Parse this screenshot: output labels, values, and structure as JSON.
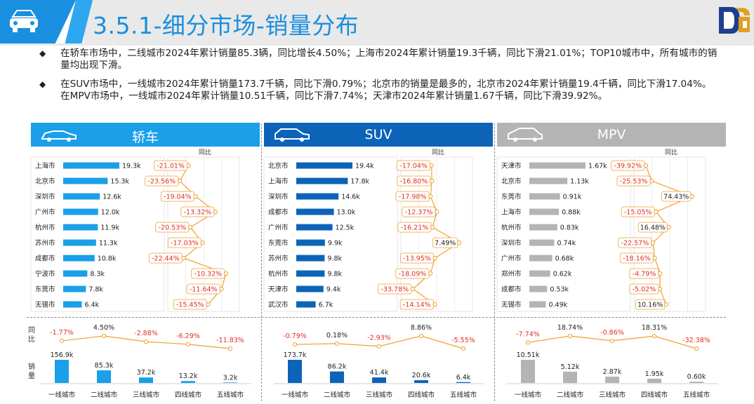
{
  "header": {
    "title": "3.5.1-细分市场-销量分布"
  },
  "bullets": [
    "在轿车市场中，二线城市2024年累计销量85.3辆，同比增长4.50%；上海市2024年累计销量19.3千辆，同比下滑21.01%；TOP10城市中，所有城市的销量均出现下滑。",
    "在SUV市场中，一线城市2024年累计销量173.7千辆，同比下滑0.79%；北京市的销量是最多的，北京市2024年累计销量19.4千辆，同比下滑17.04%。在MPV市场中，一线城市2024年累计销量10.51千辆，同比下滑7.74%；天津市2024年累计销量1.67千辆，同比下滑39.92%。"
  ],
  "colors": {
    "sedan": "#1a9fe8",
    "suv": "#0d63b8",
    "mpv": "#b4b4b4",
    "line": "#f0a030",
    "negative": "#e0302a",
    "positive": "#222222"
  },
  "panels": [
    {
      "key": "sedan",
      "title": "轿车",
      "icon": "sedan-icon"
    },
    {
      "key": "suv",
      "title": "SUV",
      "icon": "suv-icon"
    },
    {
      "key": "mpv",
      "title": "MPV",
      "icon": "mpv-icon"
    }
  ],
  "labels": {
    "yoy_header": "同比",
    "tier_yoy": "同比",
    "tier_sales": "销量"
  },
  "chart_data": [
    {
      "type": "bar",
      "title": "轿车",
      "unit": "k",
      "categories": [
        "上海市",
        "北京市",
        "深圳市",
        "广州市",
        "杭州市",
        "苏州市",
        "成都市",
        "宁波市",
        "东莞市",
        "无锡市"
      ],
      "values": [
        19.3,
        15.3,
        12.6,
        12.0,
        11.9,
        11.3,
        10.8,
        8.3,
        7.8,
        6.4
      ],
      "value_labels": [
        "19.3k",
        "15.3k",
        "12.6k",
        "12.0k",
        "11.9k",
        "11.3k",
        "10.8k",
        "8.3k",
        "7.8k",
        "6.4k"
      ],
      "yoy": [
        -21.01,
        -23.56,
        -19.04,
        -13.32,
        -20.53,
        -17.03,
        -22.44,
        -10.32,
        -11.64,
        -15.45
      ],
      "yoy_labels": [
        "-21.01%",
        "-23.56%",
        "-19.04%",
        "-13.32%",
        "-20.53%",
        "-17.03%",
        "-22.44%",
        "-10.32%",
        "-11.64%",
        "-15.45%"
      ]
    },
    {
      "type": "bar",
      "title": "SUV",
      "unit": "k",
      "categories": [
        "北京市",
        "上海市",
        "深圳市",
        "成都市",
        "广州市",
        "东莞市",
        "苏州市",
        "杭州市",
        "天津市",
        "武汉市"
      ],
      "values": [
        19.4,
        17.8,
        14.6,
        13.0,
        12.5,
        9.9,
        9.8,
        9.8,
        9.4,
        6.7
      ],
      "value_labels": [
        "19.4k",
        "17.8k",
        "14.6k",
        "13.0k",
        "12.5k",
        "9.9k",
        "9.8k",
        "9.8k",
        "9.4k",
        "6.7k"
      ],
      "yoy": [
        -17.04,
        -16.8,
        -17.98,
        -12.37,
        -16.21,
        7.49,
        -13.95,
        -18.09,
        -33.78,
        -14.14
      ],
      "yoy_labels": [
        "-17.04%",
        "-16.80%",
        "-17.98%",
        "-12.37%",
        "-16.21%",
        "7.49%",
        "-13.95%",
        "-18.09%",
        "-33.78%",
        "-14.14%"
      ]
    },
    {
      "type": "bar",
      "title": "MPV",
      "unit": "k",
      "categories": [
        "天津市",
        "北京市",
        "东莞市",
        "上海市",
        "杭州市",
        "深圳市",
        "广州市",
        "郑州市",
        "成都市",
        "无锡市"
      ],
      "values": [
        1.67,
        1.13,
        0.91,
        0.88,
        0.83,
        0.74,
        0.68,
        0.62,
        0.53,
        0.49
      ],
      "value_labels": [
        "1.67k",
        "1.13k",
        "0.91k",
        "0.88k",
        "0.83k",
        "0.74k",
        "0.68k",
        "0.62k",
        "0.53k",
        "0.49k"
      ],
      "yoy": [
        -39.92,
        -25.53,
        74.43,
        -15.05,
        16.48,
        -22.57,
        -18.16,
        -4.79,
        -5.02,
        10.16
      ],
      "yoy_labels": [
        "-39.92%",
        "-25.53%",
        "74.43%",
        "-15.05%",
        "16.48%",
        "-22.57%",
        "-18.16%",
        "-4.79%",
        "-5.02%",
        "10.16%"
      ]
    },
    {
      "type": "bar",
      "title": "轿车",
      "unit": "k",
      "categories": [
        "一线城市",
        "二线城市",
        "三线城市",
        "四线城市",
        "五线城市"
      ],
      "values": [
        156.9,
        85.3,
        37.2,
        13.2,
        3.2
      ],
      "value_labels": [
        "156.9k",
        "85.3k",
        "37.2k",
        "13.2k",
        "3.2k"
      ],
      "yoy": [
        -1.77,
        4.5,
        -2.88,
        -6.29,
        -11.83
      ],
      "yoy_labels": [
        "-1.77%",
        "4.50%",
        "-2.88%",
        "-6.29%",
        "-11.83%"
      ]
    },
    {
      "type": "bar",
      "title": "SUV",
      "unit": "k",
      "categories": [
        "一线城市",
        "二线城市",
        "三线城市",
        "四线城市",
        "五线城市"
      ],
      "values": [
        173.7,
        86.2,
        41.4,
        20.6,
        6.4
      ],
      "value_labels": [
        "173.7k",
        "86.2k",
        "41.4k",
        "20.6k",
        "6.4k"
      ],
      "yoy": [
        -0.79,
        0.18,
        -2.93,
        8.86,
        -5.55
      ],
      "yoy_labels": [
        "-0.79%",
        "0.18%",
        "-2.93%",
        "8.86%",
        "-5.55%"
      ]
    },
    {
      "type": "bar",
      "title": "MPV",
      "unit": "k",
      "categories": [
        "一线城市",
        "二线城市",
        "三线城市",
        "四线城市",
        "五线城市"
      ],
      "values": [
        10.51,
        5.12,
        2.87,
        1.95,
        0.6
      ],
      "value_labels": [
        "10.51k",
        "5.12k",
        "2.87k",
        "1.95k",
        "0.60k"
      ],
      "yoy": [
        -7.74,
        18.74,
        -0.86,
        18.31,
        -32.38
      ],
      "yoy_labels": [
        "-7.74%",
        "18.74%",
        "-0.86%",
        "18.31%",
        "-32.38%"
      ]
    }
  ]
}
